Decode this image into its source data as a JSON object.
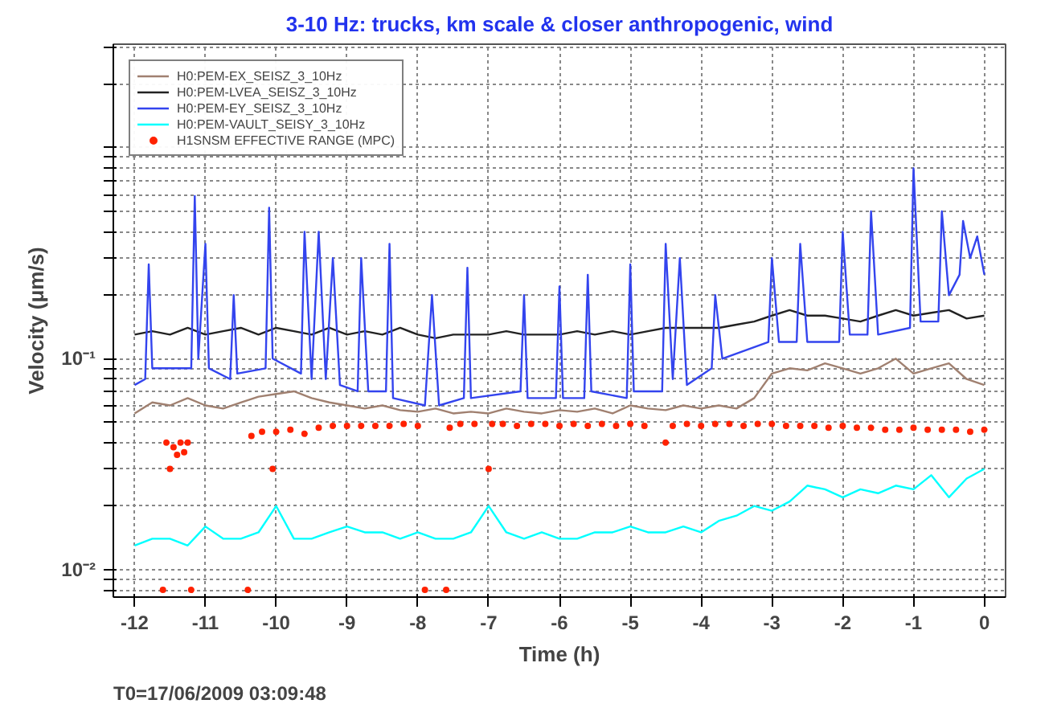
{
  "chart_data": {
    "type": "line",
    "title": "3-10 Hz: trucks, km scale & closer anthropogenic, wind",
    "xlabel": "Time (h)",
    "ylabel": "Velocity (μm/s)",
    "annotations": [
      "T0=17/06/2009 03:09:48"
    ],
    "log": "y",
    "grid": true,
    "legend": "top left",
    "line_style": "solid",
    "marker": "none",
    "xlim": [
      -12.3,
      0.3
    ],
    "xticks": [
      -12,
      -11,
      -10,
      -9,
      -8,
      -7,
      -6,
      -5,
      -4,
      -3,
      -2,
      -1,
      0
    ],
    "ylim": [
      0.0074,
      3.1
    ],
    "yticks": [
      {
        "value": 0.008,
        "label": null
      },
      {
        "value": 0.009,
        "label": null
      },
      {
        "value": 0.01,
        "label": "10⁻²"
      },
      {
        "value": 0.02,
        "label": null
      },
      {
        "value": 0.03,
        "label": null
      },
      {
        "value": 0.04,
        "label": null
      },
      {
        "value": 0.05,
        "label": null
      },
      {
        "value": 0.06,
        "label": null
      },
      {
        "value": 0.07,
        "label": null
      },
      {
        "value": 0.08,
        "label": null
      },
      {
        "value": 0.09,
        "label": null
      },
      {
        "value": 0.1,
        "label": "10⁻¹"
      },
      {
        "value": 0.2,
        "label": null
      },
      {
        "value": 0.3,
        "label": null
      },
      {
        "value": 0.4,
        "label": null
      },
      {
        "value": 0.5,
        "label": null
      },
      {
        "value": 0.6,
        "label": null
      },
      {
        "value": 0.7,
        "label": null
      },
      {
        "value": 0.8,
        "label": null
      },
      {
        "value": 0.9,
        "label": null
      },
      {
        "value": 1,
        "label": null
      },
      {
        "value": 2,
        "label": null
      },
      {
        "value": 3,
        "label": null
      }
    ],
    "x": [
      -12,
      -11.75,
      -11.5,
      -11.25,
      -11,
      -10.75,
      -10.5,
      -10.25,
      -10,
      -9.75,
      -9.5,
      -9.25,
      -9,
      -8.75,
      -8.5,
      -8.25,
      -8,
      -7.75,
      -7.5,
      -7.25,
      -7,
      -6.75,
      -6.5,
      -6.25,
      -6,
      -5.75,
      -5.5,
      -5.25,
      -5,
      -4.75,
      -4.5,
      -4.25,
      -4,
      -3.75,
      -3.5,
      -3.25,
      -3,
      -2.75,
      -2.5,
      -2.25,
      -2,
      -1.75,
      -1.5,
      -1.25,
      -1,
      -0.75,
      -0.5,
      -0.25,
      0
    ],
    "series": [
      {
        "name": "H0:PEM-EX_SEISZ_3_10Hz",
        "color": "#a08070",
        "values": [
          0.055,
          0.062,
          0.06,
          0.065,
          0.06,
          0.058,
          0.062,
          0.066,
          0.068,
          0.07,
          0.065,
          0.062,
          0.06,
          0.058,
          0.06,
          0.057,
          0.056,
          0.058,
          0.055,
          0.056,
          0.055,
          0.058,
          0.056,
          0.055,
          0.057,
          0.056,
          0.058,
          0.055,
          0.06,
          0.058,
          0.057,
          0.06,
          0.058,
          0.06,
          0.058,
          0.065,
          0.085,
          0.09,
          0.088,
          0.095,
          0.09,
          0.085,
          0.09,
          0.1,
          0.085,
          0.09,
          0.095,
          0.08,
          0.075
        ]
      },
      {
        "name": "H0:PEM-LVEA_SEISZ_3_10Hz",
        "color": "#222222",
        "values": [
          0.13,
          0.135,
          0.13,
          0.14,
          0.13,
          0.135,
          0.14,
          0.13,
          0.14,
          0.135,
          0.13,
          0.14,
          0.13,
          0.135,
          0.13,
          0.14,
          0.13,
          0.125,
          0.13,
          0.13,
          0.13,
          0.135,
          0.13,
          0.13,
          0.13,
          0.135,
          0.13,
          0.135,
          0.13,
          0.135,
          0.14,
          0.14,
          0.14,
          0.14,
          0.145,
          0.15,
          0.16,
          0.17,
          0.16,
          0.16,
          0.155,
          0.15,
          0.16,
          0.17,
          0.16,
          0.165,
          0.17,
          0.155,
          0.16
        ]
      },
      {
        "name": "H0:PEM-EY_SEISZ_3_10Hz",
        "color": "#3344ee",
        "x": [
          -12,
          -11.85,
          -11.8,
          -11.75,
          -11.2,
          -11.15,
          -11.1,
          -11.0,
          -10.95,
          -10.65,
          -10.6,
          -10.55,
          -10.15,
          -10.1,
          -10.05,
          -9.65,
          -9.6,
          -9.5,
          -9.4,
          -9.3,
          -9.2,
          -9.1,
          -8.85,
          -8.8,
          -8.7,
          -8.45,
          -8.4,
          -8.35,
          -7.9,
          -7.8,
          -7.7,
          -7.35,
          -7.3,
          -7.25,
          -6.55,
          -6.5,
          -6.45,
          -6.05,
          -6.0,
          -5.95,
          -5.65,
          -5.6,
          -5.55,
          -5.05,
          -5.0,
          -4.95,
          -4.55,
          -4.5,
          -4.4,
          -4.3,
          -4.2,
          -3.85,
          -3.8,
          -3.7,
          -3.05,
          -3.0,
          -2.9,
          -2.65,
          -2.6,
          -2.5,
          -2.05,
          -2.0,
          -1.9,
          -1.65,
          -1.6,
          -1.5,
          -1.05,
          -1.0,
          -0.9,
          -0.65,
          -0.6,
          -0.5,
          -0.35,
          -0.3,
          -0.2,
          -0.1,
          0
        ],
        "values": [
          0.075,
          0.08,
          0.28,
          0.09,
          0.09,
          0.59,
          0.1,
          0.35,
          0.09,
          0.08,
          0.2,
          0.085,
          0.09,
          0.52,
          0.1,
          0.085,
          0.4,
          0.08,
          0.4,
          0.08,
          0.3,
          0.075,
          0.07,
          0.3,
          0.07,
          0.07,
          0.35,
          0.065,
          0.06,
          0.2,
          0.06,
          0.065,
          0.27,
          0.065,
          0.07,
          0.2,
          0.065,
          0.065,
          0.22,
          0.065,
          0.065,
          0.25,
          0.07,
          0.065,
          0.28,
          0.07,
          0.07,
          0.35,
          0.08,
          0.3,
          0.075,
          0.09,
          0.2,
          0.1,
          0.12,
          0.3,
          0.12,
          0.12,
          0.35,
          0.12,
          0.12,
          0.4,
          0.13,
          0.13,
          0.5,
          0.13,
          0.14,
          0.8,
          0.15,
          0.15,
          0.5,
          0.2,
          0.25,
          0.45,
          0.3,
          0.38,
          0.25
        ]
      },
      {
        "name": "H0:PEM-VAULT_SEISY_3_10Hz",
        "color": "#00ffff",
        "values": [
          0.013,
          0.014,
          0.014,
          0.013,
          0.016,
          0.014,
          0.014,
          0.015,
          0.02,
          0.014,
          0.014,
          0.015,
          0.016,
          0.015,
          0.015,
          0.014,
          0.015,
          0.014,
          0.014,
          0.015,
          0.02,
          0.015,
          0.014,
          0.015,
          0.014,
          0.014,
          0.015,
          0.015,
          0.016,
          0.015,
          0.015,
          0.016,
          0.015,
          0.017,
          0.018,
          0.02,
          0.019,
          0.021,
          0.025,
          0.024,
          0.022,
          0.024,
          0.023,
          0.025,
          0.024,
          0.028,
          0.022,
          0.027,
          0.03
        ]
      },
      {
        "name": "H1SNSM EFFECTIVE RANGE (MPC)",
        "color": "#ff2200",
        "type": "scatter",
        "marker": "circle",
        "x": [
          -11.6,
          -11.55,
          -11.5,
          -11.45,
          -11.4,
          -11.35,
          -11.3,
          -11.25,
          -11.2,
          -10.4,
          -10.35,
          -10.2,
          -10.05,
          -10.0,
          -9.8,
          -9.6,
          -9.4,
          -9.2,
          -9.0,
          -8.8,
          -8.6,
          -8.4,
          -8.2,
          -8.0,
          -7.9,
          -7.6,
          -7.55,
          -7.4,
          -7.2,
          -7.0,
          -6.95,
          -6.8,
          -6.6,
          -6.4,
          -6.2,
          -6.0,
          -5.8,
          -5.6,
          -5.4,
          -5.2,
          -5.0,
          -4.8,
          -4.5,
          -4.4,
          -4.2,
          -4.0,
          -3.8,
          -3.6,
          -3.4,
          -3.2,
          -3.0,
          -2.8,
          -2.6,
          -2.4,
          -2.2,
          -2.0,
          -1.8,
          -1.6,
          -1.4,
          -1.2,
          -1.0,
          -0.8,
          -0.6,
          -0.4,
          -0.2,
          0
        ],
        "values": [
          0.008,
          0.04,
          0.03,
          0.038,
          0.035,
          0.04,
          0.036,
          0.04,
          0.008,
          0.008,
          0.043,
          0.045,
          0.03,
          0.045,
          0.046,
          0.044,
          0.047,
          0.048,
          0.048,
          0.048,
          0.048,
          0.048,
          0.049,
          0.048,
          0.008,
          0.008,
          0.047,
          0.049,
          0.049,
          0.03,
          0.049,
          0.049,
          0.048,
          0.049,
          0.049,
          0.048,
          0.049,
          0.048,
          0.049,
          0.048,
          0.049,
          0.048,
          0.04,
          0.048,
          0.049,
          0.048,
          0.049,
          0.049,
          0.048,
          0.049,
          0.049,
          0.048,
          0.048,
          0.048,
          0.047,
          0.048,
          0.047,
          0.047,
          0.046,
          0.046,
          0.047,
          0.046,
          0.046,
          0.046,
          0.045,
          0.046
        ]
      }
    ]
  }
}
